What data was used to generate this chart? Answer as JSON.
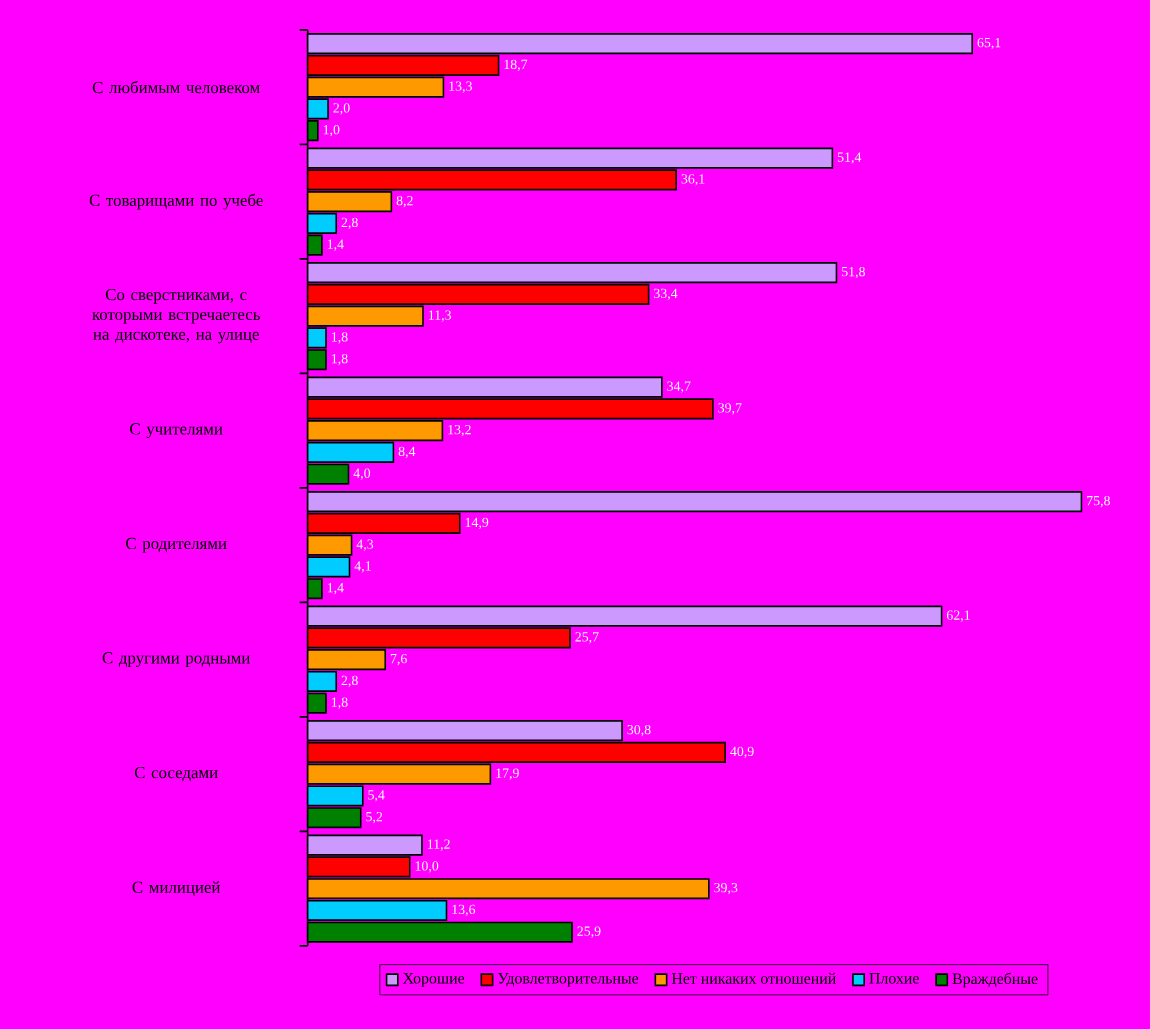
{
  "chart_data": {
    "type": "bar",
    "orientation": "horizontal",
    "legend": "bottom",
    "categories": [
      "С любимым человеком",
      "С товарищами по учебе",
      "Со сверстниками, с которыми встречаетесь на дискотеке, на улице",
      "С учителями",
      "С родителями",
      "С другими родными",
      "С соседами",
      "С милицией"
    ],
    "series": [
      {
        "name": "Хорошие",
        "color": "#cc99ff",
        "values": [
          65.1,
          51.4,
          51.8,
          34.7,
          75.8,
          62.1,
          30.8,
          11.2
        ],
        "value_labels": [
          "65,1",
          "51,4",
          "51,8",
          "34,7",
          "75,8",
          "62,1",
          "30,8",
          "11,2"
        ]
      },
      {
        "name": "Удовлетворительные",
        "color": "#ff0000",
        "values": [
          18.7,
          36.1,
          33.4,
          39.7,
          14.9,
          25.7,
          40.9,
          10.0
        ],
        "value_labels": [
          "18,7",
          "36,1",
          "33,4",
          "39,7",
          "14,9",
          "25,7",
          "40,9",
          "10,0"
        ]
      },
      {
        "name": "Нет никаких отношений",
        "color": "#ff9900",
        "values": [
          13.3,
          8.2,
          11.3,
          13.2,
          4.3,
          7.6,
          17.9,
          39.3
        ],
        "value_labels": [
          "13,3",
          "8,2",
          "11,3",
          "13,2",
          "4,3",
          "7,6",
          "17,9",
          "39,3"
        ]
      },
      {
        "name": "Плохие",
        "color": "#00ccff",
        "values": [
          2.0,
          2.8,
          1.8,
          8.4,
          4.1,
          2.8,
          5.4,
          13.6
        ],
        "value_labels": [
          "2,0",
          "2,8",
          "1,8",
          "8,4",
          "4,1",
          "2,8",
          "5,4",
          "13,6"
        ]
      },
      {
        "name": "Враждебные",
        "color": "#008000",
        "values": [
          1.0,
          1.4,
          1.8,
          4.0,
          1.4,
          1.8,
          5.2,
          25.9
        ],
        "value_labels": [
          "1,0",
          "1,4",
          "1,8",
          "4,0",
          "1,4",
          "1,8",
          "5,2",
          "25,9"
        ]
      }
    ]
  }
}
